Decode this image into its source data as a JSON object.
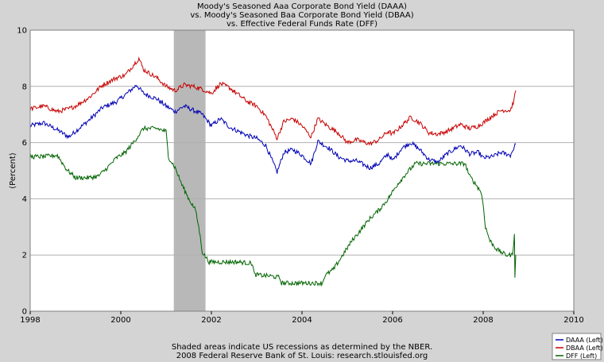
{
  "chart_data": {
    "type": "line",
    "title_lines": [
      "Moody's Seasoned Aaa Corporate Bond Yield (DAAA)",
      "vs.  Moody's Seasoned Baa Corporate Bond Yield (DBAA)",
      "vs.  Effective Federal Funds Rate (DFF)"
    ],
    "ylabel": "(Percent)",
    "xlabel": "",
    "xlim": [
      1998,
      2010
    ],
    "ylim": [
      0,
      10
    ],
    "x_ticks": [
      "1998",
      "2000",
      "2002",
      "2004",
      "2006",
      "2008",
      "2010"
    ],
    "y_ticks": [
      "0",
      "2",
      "4",
      "6",
      "8",
      "10"
    ],
    "grid": "horizontal",
    "recession_shading": [
      {
        "start": 2001.17,
        "end": 2001.87
      }
    ],
    "footer_lines": [
      "Shaded areas indicate US recessions as determined by the NBER.",
      "2008 Federal Reserve Bank of St. Louis:  research.stlouisfed.org"
    ],
    "legend_position": "bottom-right",
    "series": [
      {
        "name": "DAAA (Left)",
        "color": "#0000b4",
        "points": [
          [
            1998.0,
            6.6
          ],
          [
            1998.3,
            6.7
          ],
          [
            1998.6,
            6.45
          ],
          [
            1998.85,
            6.2
          ],
          [
            1999.0,
            6.4
          ],
          [
            1999.3,
            6.8
          ],
          [
            1999.6,
            7.25
          ],
          [
            1999.9,
            7.45
          ],
          [
            2000.1,
            7.7
          ],
          [
            2000.35,
            8.05
          ],
          [
            2000.5,
            7.75
          ],
          [
            2000.8,
            7.55
          ],
          [
            2001.0,
            7.3
          ],
          [
            2001.2,
            7.1
          ],
          [
            2001.4,
            7.3
          ],
          [
            2001.6,
            7.15
          ],
          [
            2001.8,
            7.0
          ],
          [
            2002.0,
            6.6
          ],
          [
            2002.2,
            6.85
          ],
          [
            2002.4,
            6.55
          ],
          [
            2002.6,
            6.4
          ],
          [
            2002.8,
            6.25
          ],
          [
            2003.0,
            6.15
          ],
          [
            2003.2,
            5.9
          ],
          [
            2003.45,
            4.95
          ],
          [
            2003.6,
            5.65
          ],
          [
            2003.8,
            5.75
          ],
          [
            2004.0,
            5.55
          ],
          [
            2004.2,
            5.25
          ],
          [
            2004.35,
            6.05
          ],
          [
            2004.6,
            5.8
          ],
          [
            2004.8,
            5.5
          ],
          [
            2005.0,
            5.35
          ],
          [
            2005.2,
            5.35
          ],
          [
            2005.5,
            5.1
          ],
          [
            2005.7,
            5.25
          ],
          [
            2005.9,
            5.6
          ],
          [
            2006.0,
            5.35
          ],
          [
            2006.2,
            5.8
          ],
          [
            2006.4,
            6.0
          ],
          [
            2006.6,
            5.75
          ],
          [
            2006.8,
            5.4
          ],
          [
            2007.0,
            5.3
          ],
          [
            2007.2,
            5.6
          ],
          [
            2007.5,
            5.9
          ],
          [
            2007.7,
            5.6
          ],
          [
            2007.9,
            5.65
          ],
          [
            2008.0,
            5.45
          ],
          [
            2008.2,
            5.5
          ],
          [
            2008.4,
            5.65
          ],
          [
            2008.6,
            5.55
          ],
          [
            2008.72,
            5.95
          ]
        ]
      },
      {
        "name": "DBAA (Left)",
        "color": "#c80000",
        "points": [
          [
            1998.0,
            7.2
          ],
          [
            1998.3,
            7.3
          ],
          [
            1998.6,
            7.1
          ],
          [
            1998.85,
            7.2
          ],
          [
            1999.0,
            7.3
          ],
          [
            1999.3,
            7.6
          ],
          [
            1999.6,
            8.05
          ],
          [
            1999.9,
            8.3
          ],
          [
            2000.1,
            8.4
          ],
          [
            2000.4,
            9.0
          ],
          [
            2000.5,
            8.6
          ],
          [
            2000.8,
            8.3
          ],
          [
            2001.0,
            8.0
          ],
          [
            2001.2,
            7.85
          ],
          [
            2001.4,
            8.05
          ],
          [
            2001.6,
            8.0
          ],
          [
            2001.8,
            7.9
          ],
          [
            2002.0,
            7.75
          ],
          [
            2002.2,
            8.1
          ],
          [
            2002.4,
            7.95
          ],
          [
            2002.6,
            7.7
          ],
          [
            2002.8,
            7.45
          ],
          [
            2003.0,
            7.3
          ],
          [
            2003.2,
            6.95
          ],
          [
            2003.45,
            6.15
          ],
          [
            2003.6,
            6.75
          ],
          [
            2003.8,
            6.85
          ],
          [
            2004.0,
            6.6
          ],
          [
            2004.2,
            6.2
          ],
          [
            2004.35,
            6.85
          ],
          [
            2004.6,
            6.55
          ],
          [
            2004.8,
            6.35
          ],
          [
            2005.0,
            6.0
          ],
          [
            2005.2,
            6.1
          ],
          [
            2005.5,
            5.95
          ],
          [
            2005.7,
            6.1
          ],
          [
            2005.9,
            6.4
          ],
          [
            2006.0,
            6.3
          ],
          [
            2006.2,
            6.6
          ],
          [
            2006.4,
            6.9
          ],
          [
            2006.6,
            6.7
          ],
          [
            2006.8,
            6.35
          ],
          [
            2007.0,
            6.3
          ],
          [
            2007.2,
            6.4
          ],
          [
            2007.5,
            6.65
          ],
          [
            2007.7,
            6.5
          ],
          [
            2007.9,
            6.6
          ],
          [
            2008.0,
            6.7
          ],
          [
            2008.2,
            6.95
          ],
          [
            2008.4,
            7.15
          ],
          [
            2008.6,
            7.15
          ],
          [
            2008.68,
            7.5
          ],
          [
            2008.72,
            7.85
          ]
        ]
      },
      {
        "name": "DFF (Left)",
        "color": "#006400",
        "points": [
          [
            1998.0,
            5.5
          ],
          [
            1998.3,
            5.5
          ],
          [
            1998.6,
            5.55
          ],
          [
            1998.8,
            5.05
          ],
          [
            1999.0,
            4.75
          ],
          [
            1999.3,
            4.75
          ],
          [
            1999.5,
            4.8
          ],
          [
            1999.7,
            5.1
          ],
          [
            1999.9,
            5.45
          ],
          [
            2000.1,
            5.65
          ],
          [
            2000.3,
            6.05
          ],
          [
            2000.5,
            6.5
          ],
          [
            2000.8,
            6.5
          ],
          [
            2001.0,
            6.4
          ],
          [
            2001.05,
            5.5
          ],
          [
            2001.2,
            5.1
          ],
          [
            2001.35,
            4.5
          ],
          [
            2001.5,
            4.0
          ],
          [
            2001.65,
            3.6
          ],
          [
            2001.72,
            3.0
          ],
          [
            2001.8,
            2.1
          ],
          [
            2001.95,
            1.75
          ],
          [
            2002.3,
            1.75
          ],
          [
            2002.6,
            1.75
          ],
          [
            2002.9,
            1.7
          ],
          [
            2002.95,
            1.3
          ],
          [
            2003.3,
            1.25
          ],
          [
            2003.5,
            1.2
          ],
          [
            2003.55,
            1.0
          ],
          [
            2003.8,
            1.0
          ],
          [
            2004.0,
            1.0
          ],
          [
            2004.45,
            1.0
          ],
          [
            2004.5,
            1.25
          ],
          [
            2004.7,
            1.5
          ],
          [
            2004.9,
            2.0
          ],
          [
            2005.1,
            2.5
          ],
          [
            2005.3,
            2.9
          ],
          [
            2005.5,
            3.3
          ],
          [
            2005.7,
            3.6
          ],
          [
            2005.9,
            4.0
          ],
          [
            2006.1,
            4.5
          ],
          [
            2006.3,
            4.9
          ],
          [
            2006.5,
            5.25
          ],
          [
            2006.8,
            5.25
          ],
          [
            2007.0,
            5.25
          ],
          [
            2007.3,
            5.25
          ],
          [
            2007.6,
            5.25
          ],
          [
            2007.7,
            4.8
          ],
          [
            2007.8,
            4.6
          ],
          [
            2007.95,
            4.25
          ],
          [
            2008.0,
            3.8
          ],
          [
            2008.05,
            3.0
          ],
          [
            2008.15,
            2.5
          ],
          [
            2008.3,
            2.2
          ],
          [
            2008.5,
            2.0
          ],
          [
            2008.65,
            2.0
          ],
          [
            2008.69,
            2.8
          ],
          [
            2008.7,
            1.2
          ],
          [
            2008.72,
            2.0
          ]
        ]
      }
    ]
  }
}
